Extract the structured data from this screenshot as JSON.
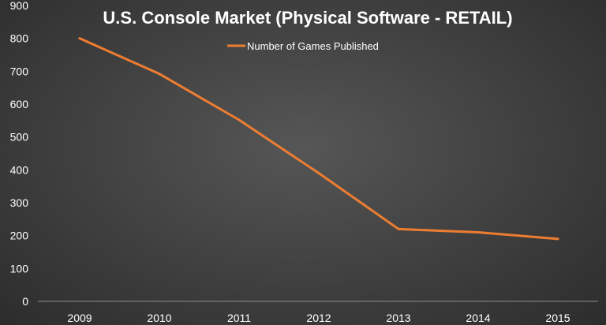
{
  "chart_data": {
    "type": "line",
    "title": "U.S. Console Market (Physical Software - RETAIL)",
    "xlabel": "",
    "ylabel": "",
    "categories": [
      "2009",
      "2010",
      "2011",
      "2012",
      "2013",
      "2014",
      "2015"
    ],
    "series": [
      {
        "name": "Number of Games Published",
        "values": [
          800,
          692,
          552,
          390,
          220,
          210,
          190
        ],
        "color": "#ed7d31"
      }
    ],
    "ylim": [
      0,
      900
    ],
    "yticks": [
      "0",
      "100",
      "200",
      "300",
      "400",
      "500",
      "600",
      "700",
      "800",
      "900"
    ],
    "grid": false,
    "legend_position": "top-center",
    "axis_color": "#8c8c8c",
    "text_color": "#ffffff"
  }
}
